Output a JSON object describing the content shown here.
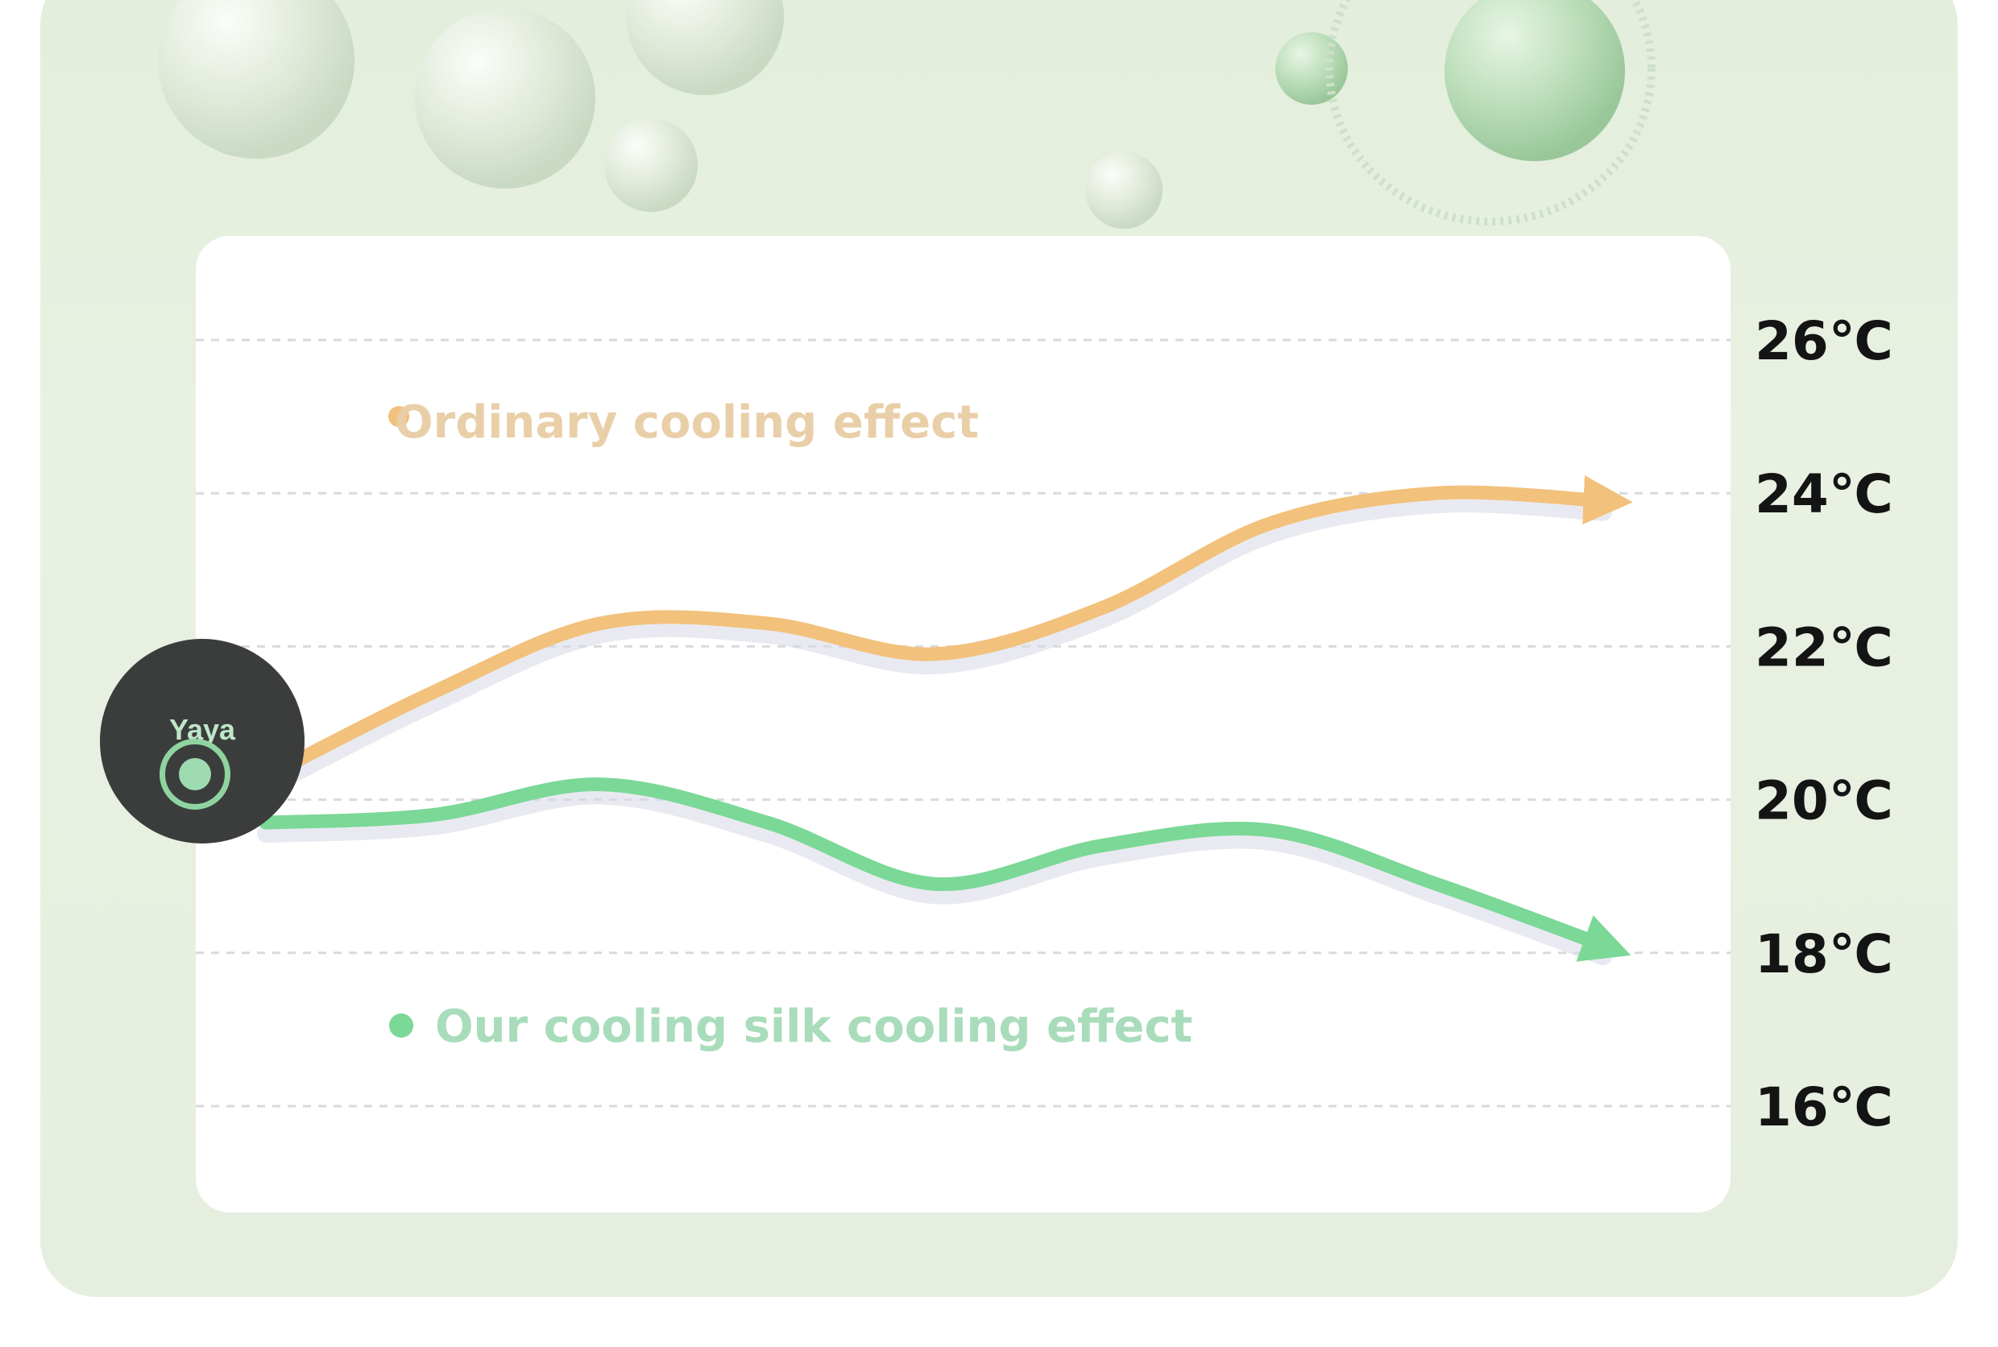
{
  "chart_data": {
    "type": "line",
    "title": "",
    "xlabel": "",
    "ylabel": "",
    "ylim": [
      16,
      26
    ],
    "y_unit": "℃",
    "y_ticks": [
      "26℃",
      "24℃",
      "22℃",
      "20℃",
      "18℃",
      "16℃"
    ],
    "y_tick_values": [
      26,
      24,
      22,
      20,
      18,
      16
    ],
    "grid": true,
    "legend_position": "inline",
    "x": [
      0,
      1,
      2,
      3,
      4,
      5,
      6,
      7,
      8
    ],
    "series": [
      {
        "name": "Ordinary cooling effect",
        "color": "#f2c17b",
        "values": [
          20.3,
          21.4,
          22.3,
          22.3,
          21.9,
          22.5,
          23.6,
          24.0,
          23.9
        ]
      },
      {
        "name": "Our cooling silk cooling effect",
        "color": "#7bd897",
        "values": [
          19.7,
          19.8,
          20.2,
          19.7,
          18.9,
          19.4,
          19.6,
          18.9,
          18.1
        ]
      }
    ]
  },
  "logo": {
    "text": "Yaya",
    "icon": "leaf-circle-icon"
  },
  "colors": {
    "background": "#e6efdf",
    "card": "#ffffff",
    "ordinary": "#f2c17b",
    "ours": "#7bd897",
    "ordinary_legend_text": "#e9cfa8",
    "ours_legend_text": "#a9dcbb"
  }
}
